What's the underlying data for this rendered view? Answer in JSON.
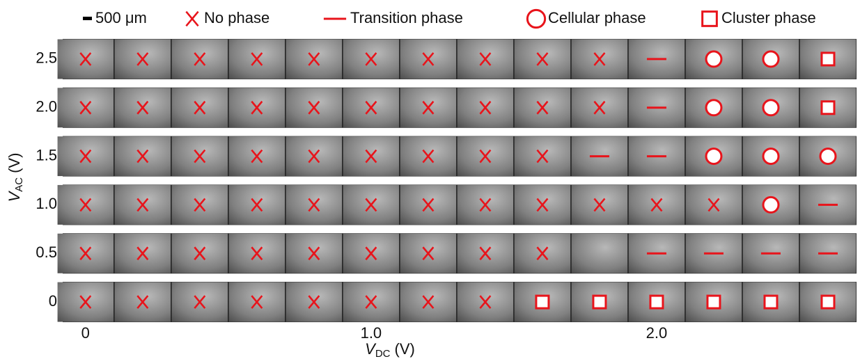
{
  "chart_data": {
    "type": "phase-map",
    "scale_bar": "500 μm",
    "x_label": {
      "symbol": "V",
      "sub": "DC",
      "unit": "(V)"
    },
    "y_label": {
      "symbol": "V",
      "sub": "AC",
      "unit": "(V)"
    },
    "xlim": [
      -0.08,
      2.7
    ],
    "ylim": [
      -0.2,
      2.7
    ],
    "xticks": [
      0,
      {
        "value": 1,
        "label": "1.0"
      },
      {
        "value": 2,
        "label": "2.0"
      }
    ],
    "yticks": [
      2.5,
      {
        "value": 2,
        "label": "2.0"
      },
      1.5,
      {
        "value": 1,
        "label": "1.0"
      },
      0.5,
      0
    ],
    "series": [
      {
        "name": "No phase",
        "marker": "x",
        "color": "#e8141b",
        "x": [
          0,
          0.2,
          0.4,
          0.6,
          0.8,
          1.0,
          1.2,
          1.4,
          1.6,
          1.8,
          0,
          0.2,
          0.4,
          0.6,
          0.8,
          1.0,
          1.2,
          1.4,
          1.6,
          1.8,
          0,
          0.2,
          0.4,
          0.6,
          0.8,
          1.0,
          1.2,
          1.4,
          1.6,
          0,
          0.2,
          0.4,
          0.6,
          0.8,
          1.0,
          1.2,
          1.4,
          1.6,
          1.8,
          2.0,
          2.2,
          0,
          0.2,
          0.4,
          0.6,
          0.8,
          1.0,
          1.2,
          1.4,
          1.6,
          0,
          0.2,
          0.4,
          0.6,
          0.8,
          1.0,
          1.2,
          1.4
        ],
        "y": [
          2.5,
          2.5,
          2.5,
          2.5,
          2.5,
          2.5,
          2.5,
          2.5,
          2.5,
          2.5,
          2,
          2,
          2,
          2,
          2,
          2,
          2,
          2,
          2,
          2,
          1.5,
          1.5,
          1.5,
          1.5,
          1.5,
          1.5,
          1.5,
          1.5,
          1.5,
          1,
          1,
          1,
          1,
          1,
          1,
          1,
          1,
          1,
          1,
          1,
          1,
          0.5,
          0.5,
          0.5,
          0.5,
          0.5,
          0.5,
          0.5,
          0.5,
          0.5,
          0,
          0,
          0,
          0,
          0,
          0,
          0,
          0
        ]
      },
      {
        "name": "Transition phase",
        "marker": "dash",
        "color": "#e8141b",
        "x": [
          2.0,
          2.0,
          1.8,
          2.0,
          2.6,
          2.0,
          2.2,
          2.4,
          2.6
        ],
        "y": [
          2.5,
          2,
          1.5,
          1.5,
          1,
          0.5,
          0.5,
          0.5,
          0.5
        ]
      },
      {
        "name": "Cellular phase",
        "marker": "circle",
        "color": "#e8141b",
        "x": [
          2.2,
          2.4,
          2.2,
          2.4,
          2.2,
          2.4,
          2.6,
          2.4
        ],
        "y": [
          2.5,
          2.5,
          2,
          2,
          1.5,
          1.5,
          1.5,
          1
        ]
      },
      {
        "name": "Cluster phase",
        "marker": "square",
        "color": "#e8141b",
        "x": [
          2.6,
          2.6,
          1.6,
          1.8,
          2.0,
          2.2,
          2.4,
          2.6
        ],
        "y": [
          2.5,
          2,
          0,
          0,
          0,
          0,
          0,
          0
        ]
      }
    ]
  }
}
